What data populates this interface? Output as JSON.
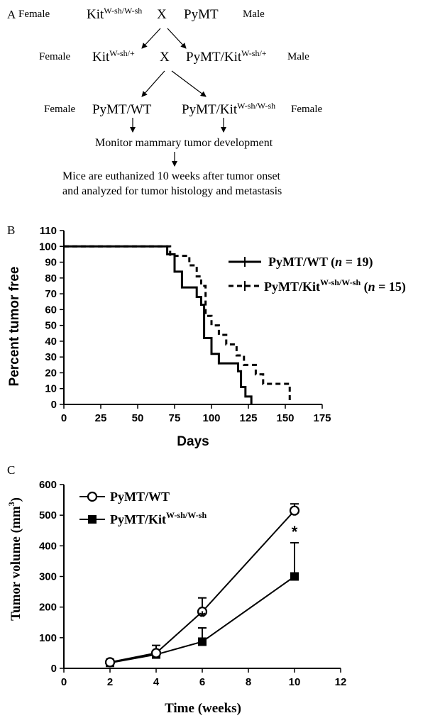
{
  "panel_a": {
    "label": "A",
    "row1": {
      "left_sex": "Female",
      "left_strain_base": "Kit",
      "left_strain_sup": "W-sh/W-sh",
      "cross": "X",
      "right_strain": "PyMT",
      "right_sex": "Male"
    },
    "row2": {
      "left_sex": "Female",
      "left_strain_base": "Kit",
      "left_strain_sup": "W-sh/+",
      "cross": "X",
      "right_strain_base": "PyMT/Kit",
      "right_strain_sup": "W-sh/+",
      "right_sex": "Male"
    },
    "row3": {
      "left_sex": "Female",
      "left_strain": "PyMT/WT",
      "right_strain_base": "PyMT/Kit",
      "right_strain_sup": "W-sh/W-sh",
      "right_sex": "Female"
    },
    "monitor_text": "Monitor mammary tumor development",
    "final_line1": "Mice are euthanized 10 weeks after tumor onset",
    "final_line2": "and analyzed for tumor histology and metastasis"
  },
  "chart_data": [
    {
      "panel": "B",
      "type": "line",
      "ylabel": "Percent tumor free",
      "xlabel": "Days",
      "xlim": [
        0,
        175
      ],
      "ylim": [
        0,
        110
      ],
      "xticks": [
        0,
        25,
        50,
        75,
        100,
        125,
        150,
        175
      ],
      "yticks": [
        0,
        10,
        20,
        30,
        40,
        50,
        60,
        70,
        80,
        90,
        100,
        110
      ],
      "step": true,
      "legend_position": "right",
      "series": [
        {
          "name_base": "PyMT/WT (",
          "name_italic": "n",
          "name_tail": " = 19)",
          "style": "solid",
          "x": [
            0,
            65,
            70,
            75,
            80,
            90,
            93,
            95,
            100,
            105,
            118,
            120,
            123,
            127
          ],
          "y": [
            100,
            100,
            95,
            84,
            74,
            68,
            63,
            42,
            32,
            26,
            21,
            11,
            5,
            0
          ]
        },
        {
          "name_base": "PyMT/Kit",
          "name_sup": "W-sh/W-sh",
          "name_mid": " (",
          "name_italic": "n",
          "name_tail": " = 15)",
          "style": "dashed",
          "x": [
            0,
            65,
            72,
            85,
            90,
            93,
            96,
            100,
            105,
            110,
            117,
            122,
            130,
            135,
            150,
            153
          ],
          "y": [
            100,
            100,
            94,
            88,
            81,
            75,
            56,
            50,
            44,
            38,
            31,
            25,
            19,
            13,
            13,
            0
          ]
        }
      ]
    },
    {
      "panel": "C",
      "type": "line",
      "ylabel": "Tumor volume (mm",
      "ylabel_sup": "3",
      "ylabel_tail": ")",
      "xlabel": "Time (weeks)",
      "xlim": [
        0,
        12
      ],
      "ylim": [
        0,
        600
      ],
      "xticks": [
        0,
        2,
        4,
        6,
        8,
        10,
        12
      ],
      "yticks": [
        0,
        100,
        200,
        300,
        400,
        500,
        600
      ],
      "legend_position": "top-left",
      "significance_marker": "*",
      "significant_x": [
        6,
        10
      ],
      "series": [
        {
          "name": "PyMT/WT",
          "marker": "open-circle",
          "x": [
            2,
            4,
            6,
            10
          ],
          "y": [
            20,
            50,
            185,
            515
          ],
          "error": [
            8,
            25,
            45,
            22
          ]
        },
        {
          "name_base": "PyMT/Kit",
          "name_sup": "W-sh/W-sh",
          "marker": "filled-square",
          "x": [
            2,
            4,
            6,
            10
          ],
          "y": [
            18,
            45,
            87,
            300
          ],
          "error": [
            5,
            10,
            45,
            110
          ]
        }
      ]
    }
  ]
}
